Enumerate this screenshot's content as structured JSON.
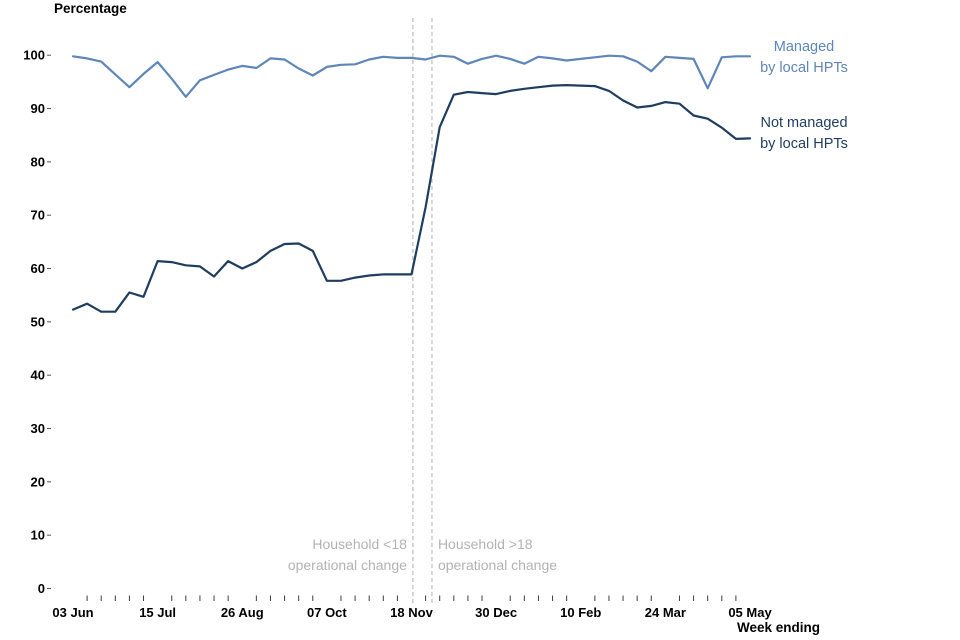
{
  "chart_data": {
    "type": "line",
    "title": "Percentage",
    "xlabel": "Week ending",
    "ylabel": "Percentage",
    "ylim": [
      0,
      100
    ],
    "grid": false,
    "legend_position": "right-of-line-ends",
    "y_ticks": [
      0,
      10,
      20,
      30,
      40,
      50,
      60,
      70,
      80,
      90,
      100
    ],
    "x_tick_labels": [
      "03 Jun",
      "15 Jul",
      "26 Aug",
      "07 Oct",
      "18 Nov",
      "30 Dec",
      "10 Feb",
      "24 Mar",
      "05 May"
    ],
    "x_tick_weeks": [
      0,
      6,
      12,
      18,
      24,
      30,
      36,
      42,
      48
    ],
    "weeks_total": 49,
    "series": [
      {
        "id": "managed",
        "name": "Managed by local HPTs",
        "color": "#5e86b8",
        "values": [
          99.8,
          99.4,
          98.8,
          96.4,
          94.0,
          96.5,
          98.7,
          95.6,
          92.2,
          95.3,
          96.3,
          97.3,
          98.0,
          97.6,
          99.4,
          99.2,
          97.5,
          96.2,
          97.8,
          98.2,
          98.3,
          99.2,
          99.7,
          99.5,
          99.5,
          99.2,
          99.9,
          99.7,
          98.4,
          99.3,
          99.9,
          99.3,
          98.4,
          99.7,
          99.4,
          99.0,
          99.3,
          99.6,
          99.9,
          99.8,
          98.8,
          97.0,
          99.7,
          99.5,
          99.3,
          93.8,
          99.6,
          99.8,
          99.8
        ]
      },
      {
        "id": "not-managed",
        "name": "Not managed by local HPTs",
        "color": "#1f3d5e",
        "values": [
          52.3,
          53.4,
          51.9,
          51.9,
          55.5,
          54.7,
          61.4,
          61.2,
          60.6,
          60.4,
          58.5,
          61.4,
          60.0,
          61.2,
          63.3,
          64.6,
          64.7,
          63.3,
          57.7,
          57.7,
          58.3,
          58.7,
          58.9,
          58.9,
          58.9,
          71.5,
          86.5,
          92.6,
          93.1,
          92.9,
          92.7,
          93.3,
          93.7,
          94.0,
          94.3,
          94.4,
          94.3,
          94.2,
          93.3,
          91.5,
          90.2,
          90.5,
          91.2,
          90.9,
          88.7,
          88.1,
          86.4,
          84.3,
          84.4
        ]
      }
    ],
    "events": [
      {
        "week_x": 24.1,
        "align": "right",
        "label_lines": [
          "Household <18",
          "operational change"
        ]
      },
      {
        "week_x": 25.45,
        "align": "left",
        "label_lines": [
          "Household >18",
          "operational change"
        ]
      }
    ],
    "legend": [
      {
        "id": "managed",
        "color": "#5e86b8",
        "lines": [
          "Managed",
          "by local HPTs"
        ]
      },
      {
        "id": "not-managed",
        "color": "#1f3d5e",
        "lines": [
          "Not managed",
          "by local HPTs"
        ]
      }
    ],
    "annotation_color": "#b3b3b3",
    "event_line_color": "#bcbcbc"
  }
}
